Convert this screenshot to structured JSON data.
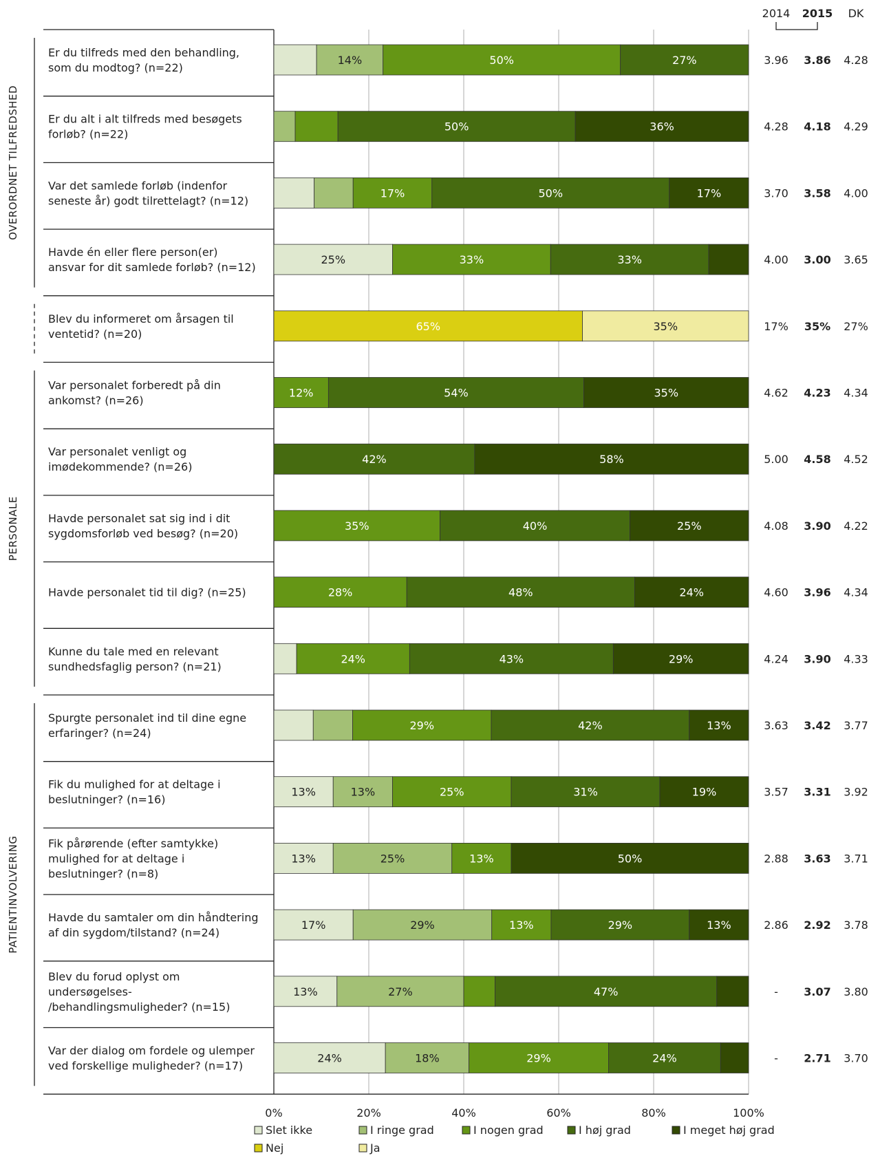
{
  "chart_data": {
    "type": "bar",
    "orientation": "horizontal-stacked-100",
    "xlim": [
      0,
      100
    ],
    "xticks": [
      "0%",
      "20%",
      "40%",
      "60%",
      "80%",
      "100%"
    ],
    "grid": true,
    "legend_position": "bottom",
    "score_headers": [
      "2014",
      "2015",
      "DK"
    ],
    "groups": [
      {
        "label": "OVERORDNET TILFREDSHED",
        "rows": [
          0,
          3
        ],
        "style": "solid"
      },
      {
        "label": "",
        "rows": [
          4,
          4
        ],
        "style": "dashed"
      },
      {
        "label": "PERSONALE",
        "rows": [
          5,
          9
        ],
        "style": "solid"
      },
      {
        "label": "PATIENTINVOLVERING",
        "rows": [
          10,
          15
        ],
        "style": "solid"
      }
    ],
    "series": [
      {
        "name": "Slet ikke",
        "color": "#dfe8cf"
      },
      {
        "name": "I ringe grad",
        "color": "#a3c075"
      },
      {
        "name": "I nogen grad",
        "color": "#659615"
      },
      {
        "name": "I høj grad",
        "color": "#466b10"
      },
      {
        "name": "I meget høj grad",
        "color": "#334a03"
      },
      {
        "name": "Nej",
        "color": "#dacf12"
      },
      {
        "name": "Ja",
        "color": "#f0eba0"
      }
    ],
    "rows": [
      {
        "lines": [
          "Er du tilfreds med den behandling,",
          "som du modtog? (n=22)"
        ],
        "values": [
          9,
          14,
          50,
          27,
          0,
          0,
          0
        ],
        "labels": [
          "",
          "14%",
          "50%",
          "27%",
          "",
          "",
          ""
        ],
        "scores": [
          "3.96",
          "3.86",
          "4.28"
        ]
      },
      {
        "lines": [
          "Er du alt i alt tilfreds med besøgets",
          "forløb? (n=22)"
        ],
        "values": [
          0,
          4.5,
          9,
          50,
          36.5,
          0,
          0
        ],
        "labels": [
          "",
          "",
          "",
          "50%",
          "36%",
          "",
          ""
        ],
        "scores": [
          "4.28",
          "4.18",
          "4.29"
        ]
      },
      {
        "lines": [
          "Var det samlede forløb (indenfor",
          "seneste år) godt tilrettelagt? (n=12)"
        ],
        "values": [
          8.5,
          8.2,
          16.6,
          50,
          16.7,
          0,
          0
        ],
        "labels": [
          "",
          "",
          "17%",
          "50%",
          "17%",
          "",
          ""
        ],
        "scores": [
          "3.70",
          "3.58",
          "4.00"
        ]
      },
      {
        "lines": [
          "Havde én eller flere person(er)",
          "ansvar for dit samlede forløb? (n=12)"
        ],
        "values": [
          25,
          0,
          33.3,
          33.3,
          8.4,
          0,
          0
        ],
        "labels": [
          "25%",
          "",
          "33%",
          "33%",
          "",
          "",
          ""
        ],
        "scores": [
          "4.00",
          "3.00",
          "3.65"
        ]
      },
      {
        "lines": [
          "Blev du informeret om årsagen til",
          "ventetid? (n=20)"
        ],
        "values": [
          0,
          0,
          0,
          0,
          0,
          65,
          35
        ],
        "labels": [
          "",
          "",
          "",
          "",
          "",
          "65%",
          "35%"
        ],
        "scores": [
          "17%",
          "35%",
          "27%"
        ]
      },
      {
        "lines": [
          "Var personalet forberedt på din",
          "ankomst? (n=26)"
        ],
        "values": [
          0,
          0,
          11.5,
          53.8,
          34.7,
          0,
          0
        ],
        "labels": [
          "",
          "",
          "12%",
          "54%",
          "35%",
          "",
          ""
        ],
        "scores": [
          "4.62",
          "4.23",
          "4.34"
        ]
      },
      {
        "lines": [
          "Var personalet venligt og",
          "imødekommende? (n=26)"
        ],
        "values": [
          0,
          0,
          0,
          42.3,
          57.7,
          0,
          0
        ],
        "labels": [
          "",
          "",
          "",
          "42%",
          "58%",
          "",
          ""
        ],
        "scores": [
          "5.00",
          "4.58",
          "4.52"
        ]
      },
      {
        "lines": [
          "Havde personalet sat sig ind i dit",
          "sygdomsforløb ved besøg? (n=20)"
        ],
        "values": [
          0,
          0,
          35,
          40,
          25,
          0,
          0
        ],
        "labels": [
          "",
          "",
          "35%",
          "40%",
          "25%",
          "",
          ""
        ],
        "scores": [
          "4.08",
          "3.90",
          "4.22"
        ]
      },
      {
        "lines": [
          "Havde personalet tid til dig? (n=25)"
        ],
        "values": [
          0,
          0,
          28,
          48,
          24,
          0,
          0
        ],
        "labels": [
          "",
          "",
          "28%",
          "48%",
          "24%",
          "",
          ""
        ],
        "scores": [
          "4.60",
          "3.96",
          "4.34"
        ]
      },
      {
        "lines": [
          "Kunne du tale med en relevant",
          "sundhedsfaglig person? (n=21)"
        ],
        "values": [
          4.8,
          0,
          23.8,
          42.9,
          28.5,
          0,
          0
        ],
        "labels": [
          "",
          "",
          "24%",
          "43%",
          "29%",
          "",
          ""
        ],
        "scores": [
          "4.24",
          "3.90",
          "4.33"
        ]
      },
      {
        "lines": [
          "Spurgte personalet ind til dine egne",
          "erfaringer? (n=24)"
        ],
        "values": [
          8.3,
          8.3,
          29.2,
          41.7,
          12.5,
          0,
          0
        ],
        "labels": [
          "",
          "",
          "29%",
          "42%",
          "13%",
          "",
          ""
        ],
        "scores": [
          "3.63",
          "3.42",
          "3.77"
        ]
      },
      {
        "lines": [
          "Fik du mulighed for at deltage i",
          "beslutninger? (n=16)"
        ],
        "values": [
          12.5,
          12.5,
          25,
          31.3,
          18.7,
          0,
          0
        ],
        "labels": [
          "13%",
          "13%",
          "25%",
          "31%",
          "19%",
          "",
          ""
        ],
        "scores": [
          "3.57",
          "3.31",
          "3.92"
        ]
      },
      {
        "lines": [
          "Fik pårørende (efter samtykke)",
          "mulighed for at deltage i",
          "beslutninger? (n=8)"
        ],
        "values": [
          12.5,
          25,
          12.5,
          0,
          50,
          0,
          0
        ],
        "labels": [
          "13%",
          "25%",
          "13%",
          "",
          "50%",
          "",
          ""
        ],
        "scores": [
          "2.88",
          "3.63",
          "3.71"
        ]
      },
      {
        "lines": [
          "Havde du samtaler om din håndtering",
          "af din sygdom/tilstand? (n=24)"
        ],
        "values": [
          16.7,
          29.2,
          12.5,
          29.1,
          12.5,
          0,
          0
        ],
        "labels": [
          "17%",
          "29%",
          "13%",
          "29%",
          "13%",
          "",
          ""
        ],
        "scores": [
          "2.86",
          "2.92",
          "3.78"
        ]
      },
      {
        "lines": [
          "Blev du forud oplyst om",
          "undersøgelses-",
          "/behandlingsmuligheder? (n=15)"
        ],
        "values": [
          13.3,
          26.7,
          6.6,
          46.7,
          6.7,
          0,
          0
        ],
        "labels": [
          "13%",
          "27%",
          "",
          "47%",
          "",
          "",
          ""
        ],
        "scores": [
          "-",
          "3.07",
          "3.80"
        ]
      },
      {
        "lines": [
          "Var der dialog om fordele og ulemper",
          "ved forskellige muligheder? (n=17)"
        ],
        "values": [
          23.5,
          17.6,
          29.4,
          23.6,
          5.9,
          0,
          0
        ],
        "labels": [
          "24%",
          "18%",
          "29%",
          "24%",
          "",
          "",
          ""
        ],
        "scores": [
          "-",
          "2.71",
          "3.70"
        ]
      }
    ]
  }
}
